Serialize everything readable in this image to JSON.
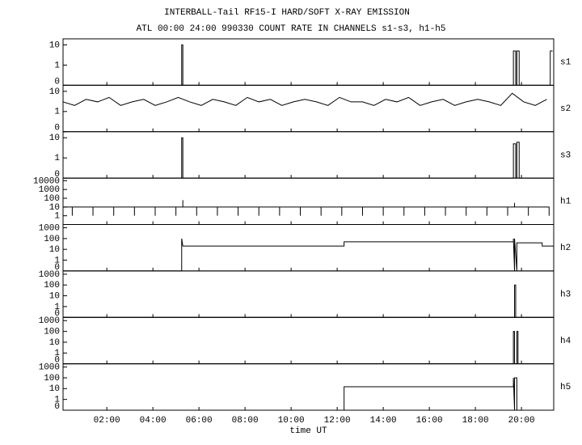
{
  "chart_data": [
    {
      "type": "line",
      "title": "INTERBALL-Tail RF15-I HARD/SOFT X-RAY EMISSION",
      "subtitle": "ATL 00:00 24:00 990330  COUNT RATE IN CHANNELS s1-s3, h1-h5",
      "label": "s1",
      "color": "#000000",
      "xlim": [
        0.1,
        21.4
      ],
      "ylim": [
        0,
        20
      ],
      "yticks": [
        0,
        1,
        10
      ],
      "x": [
        0.1,
        5.25,
        5.25,
        5.3,
        5.3,
        19.65,
        19.65,
        19.75,
        19.75,
        19.8,
        19.8,
        19.9,
        19.9,
        21.25,
        21.25,
        21.35
      ],
      "values": [
        0,
        0,
        10,
        10,
        0,
        0,
        5,
        5,
        0,
        0,
        5,
        5,
        0,
        0,
        5,
        5
      ]
    },
    {
      "type": "line",
      "label": "s2",
      "color": "#000000",
      "xlim": [
        0.1,
        21.4
      ],
      "ylim": [
        0,
        20
      ],
      "yticks": [
        0,
        1,
        10
      ],
      "x": [
        0.1,
        0.6,
        1.1,
        1.6,
        2.1,
        2.6,
        3.1,
        3.6,
        4.1,
        4.6,
        5.1,
        5.6,
        6.1,
        6.6,
        7.1,
        7.6,
        8.1,
        8.6,
        9.1,
        9.6,
        10.1,
        10.6,
        11.1,
        11.6,
        12.1,
        12.6,
        13.1,
        13.6,
        14.1,
        14.6,
        15.1,
        15.6,
        16.1,
        16.6,
        17.1,
        17.6,
        18.1,
        18.6,
        19.1,
        19.6,
        20.1,
        20.6,
        21.1
      ],
      "values": [
        3,
        2,
        4,
        3,
        5,
        2,
        3,
        4,
        2,
        3,
        5,
        3,
        2,
        4,
        3,
        2,
        5,
        3,
        4,
        2,
        3,
        4,
        3,
        2,
        5,
        3,
        3,
        2,
        4,
        3,
        5,
        2,
        3,
        4,
        2,
        3,
        4,
        3,
        2,
        8,
        3,
        2,
        4
      ]
    },
    {
      "type": "line",
      "label": "s3",
      "color": "#000000",
      "xlim": [
        0.1,
        21.4
      ],
      "ylim": [
        0,
        20
      ],
      "yticks": [
        0,
        1,
        10
      ],
      "x": [
        0.1,
        5.25,
        5.25,
        5.3,
        5.3,
        19.65,
        19.65,
        19.75,
        19.75,
        19.8,
        19.8,
        19.9,
        19.9,
        21.4
      ],
      "values": [
        0,
        0,
        10,
        10,
        0,
        0,
        5,
        5,
        0,
        0,
        6,
        6,
        0,
        0
      ]
    },
    {
      "type": "line",
      "label": "h1",
      "color": "#000000",
      "xlim": [
        0.1,
        21.4
      ],
      "ylim": [
        0,
        20000
      ],
      "yticks": [
        1,
        10,
        100,
        1000,
        10000
      ],
      "x": [
        0.1,
        0.5,
        0.5,
        0.5,
        1.4,
        1.4,
        1.4,
        2.3,
        2.3,
        2.3,
        3.2,
        3.2,
        3.2,
        4.1,
        4.1,
        4.1,
        5.0,
        5.0,
        5.0,
        5.3,
        5.3,
        5.3,
        5.9,
        5.9,
        5.9,
        6.8,
        6.8,
        6.8,
        7.7,
        7.7,
        7.7,
        8.6,
        8.6,
        8.6,
        9.5,
        9.5,
        9.5,
        10.4,
        10.4,
        10.4,
        11.3,
        11.3,
        11.3,
        12.2,
        12.2,
        12.2,
        13.1,
        13.1,
        13.1,
        14.0,
        14.0,
        14.0,
        14.9,
        14.9,
        14.9,
        15.8,
        15.8,
        15.8,
        16.7,
        16.7,
        16.7,
        17.6,
        17.6,
        17.6,
        18.5,
        18.5,
        18.5,
        19.4,
        19.4,
        19.4,
        19.7,
        19.7,
        19.7,
        20.3,
        20.3,
        20.3,
        21.2,
        21.2,
        21.2
      ],
      "values": [
        10,
        10,
        1,
        10,
        10,
        1,
        10,
        10,
        1,
        10,
        10,
        1,
        10,
        10,
        1,
        10,
        10,
        1,
        10,
        10,
        60,
        10,
        10,
        1,
        10,
        10,
        1,
        10,
        10,
        1,
        10,
        10,
        1,
        10,
        10,
        1,
        10,
        10,
        1,
        10,
        10,
        1,
        10,
        10,
        1,
        10,
        10,
        1,
        10,
        10,
        1,
        10,
        10,
        1,
        10,
        10,
        1,
        10,
        10,
        1,
        10,
        10,
        1,
        10,
        10,
        1,
        10,
        10,
        1,
        10,
        10,
        30,
        10,
        10,
        1,
        10,
        10,
        1,
        10
      ]
    },
    {
      "type": "line",
      "label": "h2",
      "color": "#000000",
      "xlim": [
        0.1,
        21.4
      ],
      "ylim": [
        0,
        2000
      ],
      "yticks": [
        0,
        1,
        10,
        100,
        1000
      ],
      "x": [
        0.1,
        5.25,
        5.25,
        5.3,
        12.3,
        12.3,
        19.65,
        19.65,
        19.7,
        19.7,
        19.8,
        19.8,
        20.9,
        20.9,
        21.4
      ],
      "values": [
        0,
        0,
        100,
        20,
        20,
        50,
        50,
        100,
        0,
        100,
        0,
        40,
        40,
        20,
        20
      ]
    },
    {
      "type": "line",
      "label": "h3",
      "color": "#000000",
      "xlim": [
        0.1,
        21.4
      ],
      "ylim": [
        0,
        2000
      ],
      "yticks": [
        0,
        1,
        10,
        100,
        1000
      ],
      "x": [
        0.1,
        19.7,
        19.7,
        19.75,
        19.75,
        21.4
      ],
      "values": [
        0,
        0,
        100,
        100,
        0,
        0
      ]
    },
    {
      "type": "line",
      "label": "h4",
      "color": "#000000",
      "xlim": [
        0.1,
        21.4
      ],
      "ylim": [
        0,
        2000
      ],
      "yticks": [
        0,
        1,
        10,
        100,
        1000
      ],
      "x": [
        0.1,
        19.65,
        19.65,
        19.7,
        19.7,
        19.8,
        19.8,
        19.85,
        19.85,
        21.4
      ],
      "values": [
        0,
        0,
        100,
        100,
        0,
        0,
        100,
        100,
        0,
        0
      ]
    },
    {
      "type": "line",
      "label": "h5",
      "color": "#000000",
      "xlim": [
        0.1,
        21.4
      ],
      "ylim": [
        0,
        2000
      ],
      "yticks": [
        0,
        1,
        10,
        100,
        1000
      ],
      "x": [
        0.1,
        12.3,
        12.3,
        19.65,
        19.65,
        19.7,
        19.7,
        19.8,
        19.8,
        21.4
      ],
      "values": [
        0,
        0,
        15,
        15,
        100,
        0,
        100,
        100,
        0,
        0
      ],
      "xlabel": "time UT",
      "xticks": [
        {
          "value": 2,
          "label": "02:00"
        },
        {
          "value": 4,
          "label": "04:00"
        },
        {
          "value": 6,
          "label": "06:00"
        },
        {
          "value": 8,
          "label": "08:00"
        },
        {
          "value": 10,
          "label": "10:00"
        },
        {
          "value": 12,
          "label": "12:00"
        },
        {
          "value": 14,
          "label": "14:00"
        },
        {
          "value": 16,
          "label": "16:00"
        },
        {
          "value": 18,
          "label": "18:00"
        },
        {
          "value": 20,
          "label": "20:00"
        }
      ]
    }
  ]
}
